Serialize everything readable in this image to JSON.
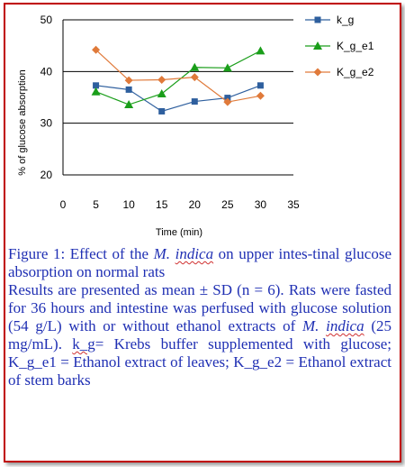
{
  "chart_data": {
    "type": "line",
    "xlabel": "Time (min)",
    "ylabel": "% of glucose absorption",
    "xlim": [
      0,
      35
    ],
    "ylim": [
      20,
      50
    ],
    "x_ticks": [
      0,
      5,
      10,
      15,
      20,
      25,
      30,
      35
    ],
    "y_ticks": [
      20,
      30,
      40,
      50
    ],
    "grid": "horizontal",
    "legend_position": "right",
    "x": [
      5,
      10,
      15,
      20,
      25,
      30
    ],
    "series": [
      {
        "name": "k_g",
        "color": "#2e5f9e",
        "marker": "square",
        "values": [
          37.3,
          36.5,
          32.3,
          34.2,
          34.9,
          37.3
        ]
      },
      {
        "name": "K_g_e1",
        "color": "#1a9e1a",
        "marker": "triangle",
        "values": [
          36.1,
          33.6,
          35.7,
          40.8,
          40.7,
          44.0
        ]
      },
      {
        "name": "K_g_e2",
        "color": "#e07a3a",
        "marker": "diamond",
        "values": [
          44.2,
          38.3,
          38.4,
          38.9,
          34.1,
          35.3
        ]
      }
    ]
  },
  "caption": {
    "figure_prefix": "Figure 1: Effect of the ",
    "figure_italic": "M. ",
    "figure_squig": "indica",
    "figure_rest": " on upper intes-tinal glucose absorption on normal rats",
    "results_part1": "Results are presented as mean ± SD (n = 6). Rats were fasted for 36 hours and intestine was perfused with glucose solution (54 g/L) with or without ethanol extracts of ",
    "results_italic": "M. ",
    "results_squig_italic": "indica",
    "results_part2": " (25 mg/mL). ",
    "results_squig_kg": "k_g",
    "results_part3": "= Krebs buffer supplemented with glucose; K_g_e1 = Ethanol extract of leaves; K_g_e2 = Ethanol extract of stem barks"
  }
}
